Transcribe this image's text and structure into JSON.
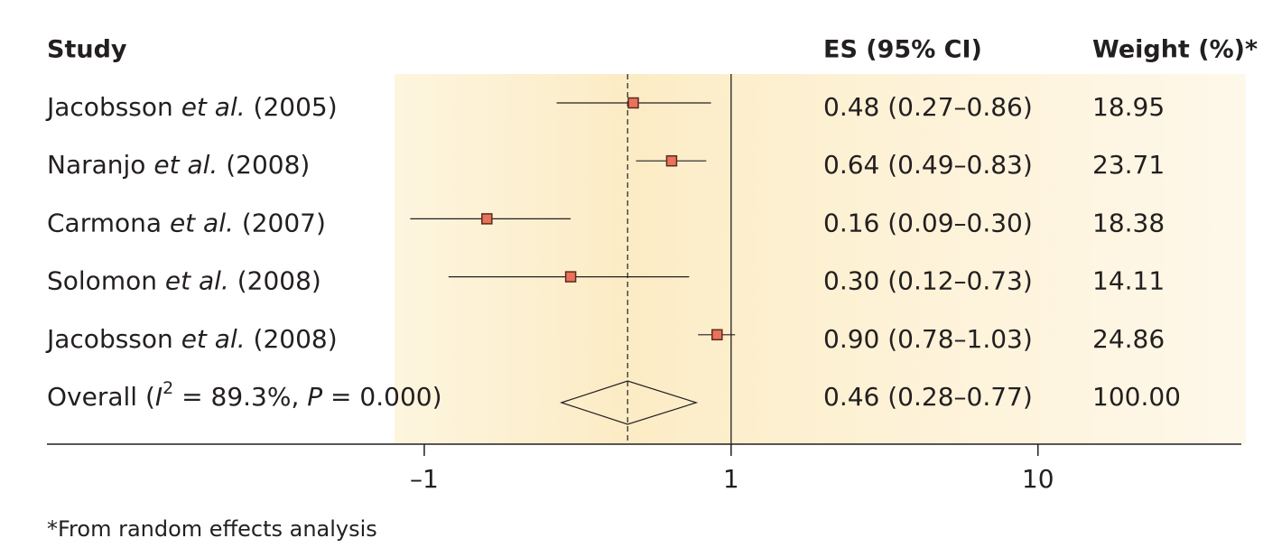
{
  "chart_data": {
    "type": "forest",
    "study_header": "Study",
    "es_header": "ES (95% CI)",
    "weight_header": "Weight (%)*",
    "et_al": "et al.",
    "authors": [
      "Jacobsson",
      "Naranjo",
      "Carmona",
      "Solomon",
      "Jacobsson"
    ],
    "years": [
      "(2005)",
      "(2008)",
      "(2007)",
      "(2008)",
      "(2008)"
    ],
    "values": [
      0.48,
      0.64,
      0.16,
      0.3,
      0.9
    ],
    "lower": [
      0.27,
      0.49,
      0.09,
      0.12,
      0.78
    ],
    "upper": [
      0.86,
      0.83,
      0.3,
      0.73,
      1.03
    ],
    "value_labels": [
      "0.48 (0.27–0.86)",
      "0.64 (0.49–0.83)",
      "0.16 (0.09–0.30)",
      "0.30 (0.12–0.73)",
      "0.90 (0.78–1.03)"
    ],
    "weights": [
      "18.95",
      "23.71",
      "18.38",
      "14.11",
      "24.86"
    ],
    "overall": {
      "label_parts": [
        "Overall (",
        "I",
        "2",
        " = 89.3%, ",
        "P",
        " = 0.000)"
      ],
      "value": 0.46,
      "lower": 0.28,
      "upper": 0.77,
      "value_label": "0.46 (0.28–0.77)",
      "weight": "100.00"
    },
    "log_x": true,
    "xlim": [
      0.08,
      46
    ],
    "xticks": [
      {
        "value": 0.1,
        "label": "–1"
      },
      1,
      10
    ],
    "color": "#e8735a",
    "footnote": "*From random effects analysis"
  }
}
